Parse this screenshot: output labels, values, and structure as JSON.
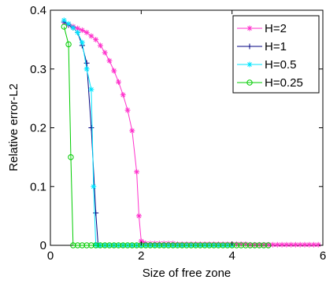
{
  "chart_data": {
    "type": "line",
    "title": "",
    "xlabel": "Size of free zone",
    "ylabel": "Relative error-L2",
    "xlim": [
      0,
      6
    ],
    "ylim": [
      0,
      0.4
    ],
    "xticks": [
      0,
      2,
      4,
      6
    ],
    "yticks": [
      0,
      0.1,
      0.2,
      0.3,
      0.4
    ],
    "xtick_labels": [
      "0",
      "2",
      "4",
      "6"
    ],
    "ytick_labels": [
      "0",
      "0.1",
      "0.2",
      "0.3",
      "0.4"
    ],
    "grid": false,
    "legend_position": "top-right",
    "series": [
      {
        "name": "H=2",
        "color": "#ff33cc",
        "marker": "star",
        "x": [
          0.3,
          0.4,
          0.5,
          0.6,
          0.7,
          0.8,
          0.9,
          1.0,
          1.1,
          1.2,
          1.3,
          1.4,
          1.5,
          1.6,
          1.7,
          1.8,
          1.9,
          1.95,
          2.0,
          2.05,
          2.1,
          2.2,
          2.3,
          2.4,
          2.5,
          2.6,
          2.7,
          2.8,
          2.9,
          3.0,
          3.1,
          3.2,
          3.3,
          3.4,
          3.5,
          3.6,
          3.7,
          3.8,
          3.9,
          4.0,
          4.1,
          4.2,
          4.3,
          4.4,
          4.5,
          4.6,
          4.7,
          4.8,
          4.9,
          5.0,
          5.1,
          5.2,
          5.3,
          5.4,
          5.5,
          5.6,
          5.7,
          5.8,
          5.9
        ],
        "y": [
          0.38,
          0.375,
          0.372,
          0.369,
          0.366,
          0.362,
          0.356,
          0.35,
          0.34,
          0.328,
          0.314,
          0.297,
          0.278,
          0.256,
          0.23,
          0.195,
          0.125,
          0.05,
          0.007,
          0.004,
          0.003,
          0.003,
          0.003,
          0.003,
          0.003,
          0.003,
          0.003,
          0.002,
          0.002,
          0.002,
          0.002,
          0.002,
          0.002,
          0.002,
          0.002,
          0.002,
          0.002,
          0.002,
          0.002,
          0.002,
          0.002,
          0.002,
          0.002,
          0.001,
          0.001,
          0.001,
          0.001,
          0.001,
          0.001,
          0.001,
          0.001,
          0.001,
          0.001,
          0.001,
          0.001,
          0.001,
          0.001,
          0.001,
          0.001
        ]
      },
      {
        "name": "H=1",
        "color": "#000080",
        "marker": "plus",
        "x": [
          0.3,
          0.4,
          0.5,
          0.6,
          0.7,
          0.8,
          0.9,
          1.0,
          1.05,
          1.1,
          1.2,
          1.3,
          1.4,
          1.5,
          1.6,
          1.7,
          1.8,
          1.9,
          2.0,
          2.1,
          2.2,
          2.3,
          2.4,
          2.5,
          2.6,
          2.7,
          2.8,
          2.9,
          3.0
        ],
        "y": [
          0.38,
          0.375,
          0.37,
          0.362,
          0.34,
          0.31,
          0.2,
          0.055,
          0.001,
          0,
          0,
          0,
          0,
          0,
          0,
          0,
          0,
          0,
          0,
          0,
          0,
          0,
          0,
          0,
          0,
          0,
          0,
          0,
          0
        ]
      },
      {
        "name": "H=0.5",
        "color": "#00e5ff",
        "marker": "star",
        "x": [
          0.3,
          0.4,
          0.5,
          0.6,
          0.7,
          0.8,
          0.9,
          0.95,
          1.0,
          1.05,
          1.1,
          1.2,
          1.3,
          1.4,
          1.5,
          1.6,
          1.7,
          1.8,
          1.9,
          2.0,
          2.1,
          2.2,
          2.3,
          2.4,
          2.5,
          2.6,
          2.7,
          2.8,
          2.9,
          3.0,
          3.1,
          3.2,
          3.3,
          3.4,
          3.5,
          3.6,
          3.7,
          3.8,
          3.9,
          4.0
        ],
        "y": [
          0.383,
          0.377,
          0.37,
          0.362,
          0.345,
          0.3,
          0.265,
          0.1,
          0.001,
          0,
          0,
          0,
          0,
          0,
          0,
          0,
          0,
          0,
          0,
          0,
          0,
          0,
          0,
          0,
          0,
          0,
          0,
          0,
          0,
          0,
          0,
          0,
          0,
          0,
          0,
          0,
          0,
          0,
          0,
          0
        ]
      },
      {
        "name": "H=0.25",
        "color": "#00cc00",
        "marker": "circle",
        "x": [
          0.3,
          0.4,
          0.45,
          0.5,
          0.6,
          0.7,
          0.8,
          0.9,
          1.0,
          1.1,
          1.2,
          1.3,
          1.4,
          1.5,
          1.6,
          1.7,
          1.8,
          1.9,
          2.0,
          2.1,
          2.2,
          2.3,
          2.4,
          2.5,
          2.6,
          2.7,
          2.8,
          2.9,
          3.0,
          3.1,
          3.2,
          3.3,
          3.4,
          3.5,
          3.6,
          3.7,
          3.8,
          3.9,
          4.0,
          4.1,
          4.2,
          4.3,
          4.4,
          4.5,
          4.6,
          4.7,
          4.8
        ],
        "y": [
          0.372,
          0.342,
          0.15,
          0,
          0,
          0,
          0,
          0,
          0,
          0,
          0,
          0,
          0,
          0,
          0,
          0,
          0,
          0,
          0,
          0,
          0,
          0,
          0,
          0,
          0,
          0,
          0,
          0,
          0,
          0,
          0,
          0,
          0,
          0,
          0,
          0,
          0,
          0,
          0,
          0,
          0,
          0,
          0,
          0,
          0,
          0,
          0
        ]
      }
    ]
  }
}
